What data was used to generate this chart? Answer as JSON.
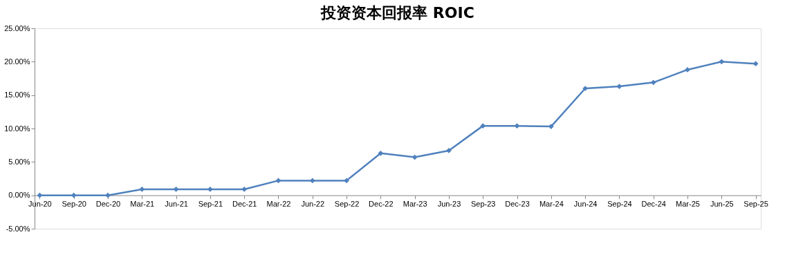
{
  "chart_data": {
    "type": "line",
    "title": "投资资本回报率 ROIC",
    "categories": [
      "Jun-20",
      "Sep-20",
      "Dec-20",
      "Mar-21",
      "Jun-21",
      "Sep-21",
      "Dec-21",
      "Mar-22",
      "Jun-22",
      "Sep-22",
      "Dec-22",
      "Mar-23",
      "Jun-23",
      "Sep-23",
      "Dec-23",
      "Mar-24",
      "Jun-24",
      "Sep-24",
      "Dec-24",
      "Mar-25",
      "Jun-25",
      "Sep-25"
    ],
    "series": [
      {
        "color": "#4f81bd",
        "values": [
          0,
          0,
          0,
          0.9,
          0.9,
          0.9,
          0.9,
          2.2,
          2.2,
          2.2,
          6.3,
          5.7,
          6.7,
          10.4,
          10.4,
          10.3,
          16.0,
          16.3,
          16.9,
          18.8,
          20.0,
          19.7
        ]
      }
    ],
    "ylim": [
      -5,
      25
    ],
    "yticks": [
      {
        "value": -5,
        "label": "-5.00%"
      },
      {
        "value": 0,
        "label": "0.00%"
      },
      {
        "value": 5,
        "label": "5.00%"
      },
      {
        "value": 10,
        "label": "10.00%"
      },
      {
        "value": 15,
        "label": "15.00%"
      },
      {
        "value": 20,
        "label": "20.00%"
      },
      {
        "value": 25,
        "label": "25.00%"
      }
    ],
    "grid": false,
    "marker": "diamond",
    "line_style": "solid"
  }
}
